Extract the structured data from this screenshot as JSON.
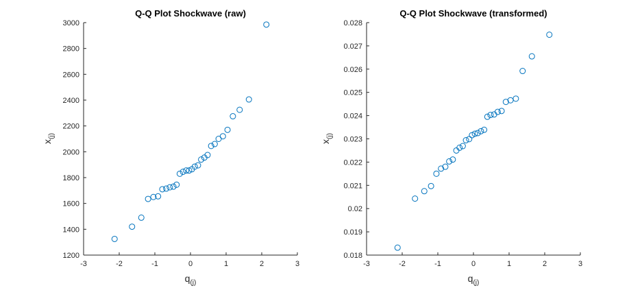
{
  "chart_data": [
    {
      "type": "scatter",
      "title": "Q-Q Plot Shockwave (raw)",
      "xlabel_main": "q",
      "xlabel_sub": "(j)",
      "ylabel_main": "x",
      "ylabel_sub": "(j)",
      "xlim": [
        -3,
        3
      ],
      "ylim": [
        1200,
        3000
      ],
      "xticks": [
        -3,
        -2,
        -1,
        0,
        1,
        2,
        3
      ],
      "yticks": [
        1200,
        1400,
        1600,
        1800,
        2000,
        2200,
        2400,
        2600,
        2800,
        3000
      ],
      "grid": false,
      "marker_color": "#0072BD",
      "x": [
        -2.13,
        -1.64,
        -1.38,
        -1.19,
        -1.04,
        -0.91,
        -0.79,
        -0.68,
        -0.58,
        -0.48,
        -0.39,
        -0.3,
        -0.21,
        -0.12,
        -0.04,
        0.04,
        0.12,
        0.21,
        0.3,
        0.39,
        0.48,
        0.58,
        0.68,
        0.79,
        0.91,
        1.04,
        1.19,
        1.38,
        1.64,
        2.13
      ],
      "y": [
        1325,
        1420,
        1490,
        1635,
        1650,
        1655,
        1710,
        1715,
        1725,
        1730,
        1745,
        1830,
        1845,
        1855,
        1855,
        1865,
        1885,
        1895,
        1940,
        1955,
        1975,
        2045,
        2060,
        2100,
        2120,
        2170,
        2275,
        2325,
        2405,
        2985
      ]
    },
    {
      "type": "scatter",
      "title": "Q-Q Plot Shockwave (transformed)",
      "xlabel_main": "q",
      "xlabel_sub": "(j)",
      "ylabel_main": "x",
      "ylabel_sub": "(j)",
      "xlim": [
        -3,
        3
      ],
      "ylim": [
        0.018,
        0.028
      ],
      "xticks": [
        -3,
        -2,
        -1,
        0,
        1,
        2,
        3
      ],
      "yticks": [
        0.018,
        0.019,
        0.02,
        0.021,
        0.022,
        0.023,
        0.024,
        0.025,
        0.026,
        0.027,
        0.028
      ],
      "ytick_labels": [
        "0.018",
        "0.019",
        "0.02",
        "0.021",
        "0.022",
        "0.023",
        "0.024",
        "0.025",
        "0.026",
        "0.027",
        "0.028"
      ],
      "grid": false,
      "marker_color": "#0072BD",
      "x": [
        -2.13,
        -1.64,
        -1.38,
        -1.19,
        -1.04,
        -0.91,
        -0.79,
        -0.68,
        -0.58,
        -0.48,
        -0.39,
        -0.3,
        -0.21,
        -0.12,
        -0.04,
        0.04,
        0.12,
        0.21,
        0.3,
        0.39,
        0.48,
        0.58,
        0.68,
        0.79,
        0.91,
        1.04,
        1.19,
        1.38,
        1.64,
        2.13
      ],
      "y": [
        0.01832,
        0.02043,
        0.02075,
        0.02097,
        0.0215,
        0.02172,
        0.0218,
        0.02203,
        0.02211,
        0.0225,
        0.02262,
        0.02269,
        0.02294,
        0.02299,
        0.02316,
        0.02322,
        0.02325,
        0.02333,
        0.02339,
        0.02395,
        0.02403,
        0.02405,
        0.02416,
        0.0242,
        0.02459,
        0.02466,
        0.02473,
        0.02592,
        0.02655,
        0.02748
      ]
    }
  ]
}
